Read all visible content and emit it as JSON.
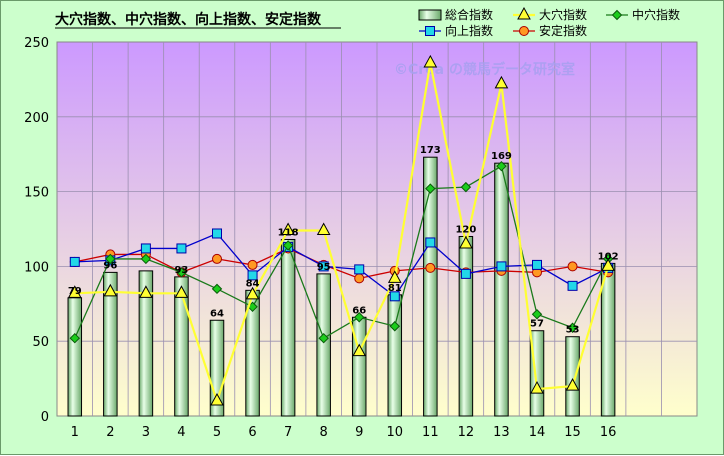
{
  "chart_data": {
    "type": "bar+line",
    "title": "大穴指数、中穴指数、向上指数、安定指数",
    "watermark": "©Crea の競馬データ研究室",
    "categories": [
      "1",
      "2",
      "3",
      "4",
      "5",
      "6",
      "7",
      "8",
      "9",
      "10",
      "11",
      "12",
      "13",
      "14",
      "15",
      "16"
    ],
    "ylim": [
      0,
      250
    ],
    "yticks": [
      0,
      50,
      100,
      150,
      200,
      250
    ],
    "grid": true,
    "legend_position": "top-right",
    "series": [
      {
        "name": "総合指数",
        "kind": "bar",
        "color": "#a6d8a6",
        "values": [
          79,
          96,
          97,
          93,
          64,
          84,
          118,
          95,
          66,
          81,
          173,
          120,
          169,
          57,
          53,
          102
        ],
        "labels": [
          "79",
          "96",
          "",
          "93",
          "64",
          "84",
          "118",
          "95",
          "66",
          "81",
          "173",
          "120",
          "169",
          "57",
          "53",
          "102"
        ]
      },
      {
        "name": "大穴指数",
        "kind": "line",
        "marker": "triangle",
        "color": "#ffff33",
        "values": [
          82,
          83,
          82,
          82,
          10,
          81,
          124,
          124,
          43,
          92,
          236,
          115,
          222,
          18,
          20,
          100
        ]
      },
      {
        "name": "中穴指数",
        "kind": "line",
        "marker": "diamond",
        "color": "#1a7a1a",
        "marker_color": "#1ccc1c",
        "values": [
          52,
          105,
          105,
          96,
          85,
          73,
          114,
          52,
          66,
          60,
          152,
          153,
          167,
          68,
          59,
          105
        ]
      },
      {
        "name": "向上指数",
        "kind": "line",
        "marker": "square",
        "color": "#0000cc",
        "marker_color": "#22d8e8",
        "values": [
          103,
          104,
          112,
          112,
          122,
          94,
          113,
          100,
          98,
          80,
          116,
          95,
          100,
          101,
          87,
          99
        ]
      },
      {
        "name": "安定指数",
        "kind": "line",
        "marker": "circle",
        "color": "#cc0000",
        "marker_color": "#ff9922",
        "values": [
          103,
          108,
          108,
          96,
          105,
          101,
          112,
          101,
          92,
          97,
          99,
          96,
          97,
          96,
          100,
          96
        ]
      }
    ]
  }
}
